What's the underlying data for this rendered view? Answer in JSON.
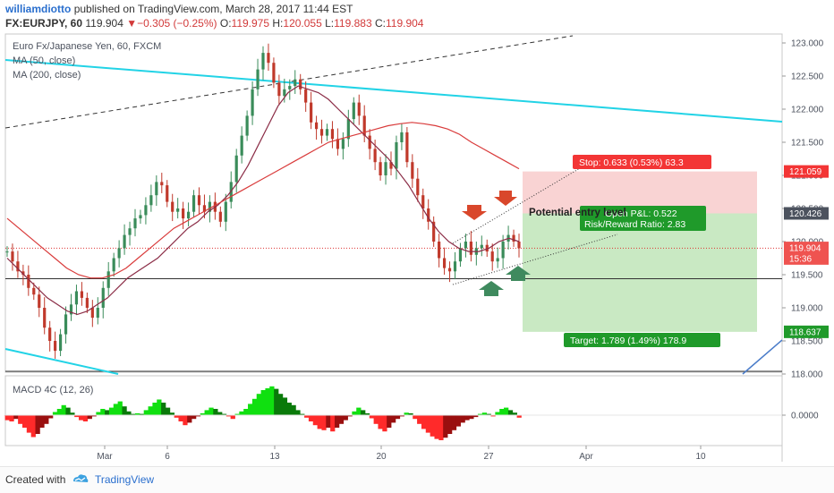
{
  "header": {
    "author": "williamdiotto",
    "published_text": "published on TradingView.com, March 28, 2017 11:44 EST",
    "symbol": "FX:EURJPY, 60",
    "price": "119.904",
    "change_arrow": "▼",
    "change": "−0.305 (−0.25%)",
    "open_label": "O:",
    "open": "119.975",
    "high_label": "H:",
    "high": "120.055",
    "low_label": "L:",
    "low": "119.883",
    "close_label": "C:",
    "close": "119.904"
  },
  "legend": {
    "instrument": "Euro Fx/Japanese Yen, 60, FXCM",
    "ma50": "MA (50, close)",
    "ma200": "MA (200, close)",
    "macd": "MACD 4C (12, 26)"
  },
  "overlays": {
    "potential_entry": "Potential entry level",
    "stop": "Stop: 0.633 (0.53%) 63.3",
    "open_pl": "Open P&L: 0.522",
    "risk_reward": "Risk/Reward Ratio: 2.83",
    "target": "Target: 1.789 (1.49%) 178.9"
  },
  "footer": {
    "created_with": "Created with",
    "brand": "TradingView",
    "logo_icon": "tradingview-logo-icon"
  },
  "colors": {
    "up": "#26a69a",
    "down": "#ef5350",
    "candle_up": "#3a8c5a",
    "candle_down": "#c0392b",
    "ma50": "#8b2c46",
    "ma200": "#d93b3b",
    "trend_cyan": "#22d3e6",
    "stop_zone": "#f9d3d3",
    "target_zone": "#c9e9c3",
    "stop_label": "#f33535",
    "target_label": "#1f9a2a",
    "macd_bright_green": "#10e010",
    "macd_dark_green": "#0a7a0a",
    "macd_bright_red": "#ff2a2a",
    "macd_dark_red": "#9a0f0f",
    "arrow_red": "#d9472b",
    "arrow_green": "#3f8a5e"
  },
  "chart_data": [
    {
      "type": "candlestick",
      "title": "Euro Fx/Japanese Yen, 60, FXCM",
      "ylim": [
        118.0,
        123.1
      ],
      "y_ticks": [
        "123.000",
        "122.500",
        "122.000",
        "121.500",
        "121.000",
        "120.500",
        "120.000",
        "119.500",
        "119.000",
        "118.500",
        "118.000"
      ],
      "x_ticks": [
        "Mar",
        "6",
        "13",
        "20",
        "27",
        "Apr",
        "10"
      ],
      "price_labels": [
        {
          "text": "121.059",
          "value": 121.059,
          "kind": "stop"
        },
        {
          "text": "120.426",
          "value": 120.426,
          "kind": "entry"
        },
        {
          "text": "119.904",
          "value": 119.904,
          "kind": "last"
        },
        {
          "text": "15:36",
          "value": 119.745,
          "kind": "countdown"
        },
        {
          "text": "118.637",
          "value": 118.637,
          "kind": "target"
        }
      ],
      "close_series": [
        119.85,
        119.7,
        119.55,
        119.5,
        119.3,
        119.2,
        119.0,
        118.7,
        118.5,
        118.35,
        118.6,
        118.9,
        119.05,
        119.25,
        119.15,
        119.0,
        118.85,
        119.0,
        119.3,
        119.55,
        119.75,
        119.9,
        120.1,
        120.2,
        120.35,
        120.4,
        120.55,
        120.7,
        120.9,
        120.85,
        120.6,
        120.45,
        120.5,
        120.35,
        120.45,
        120.7,
        120.55,
        120.45,
        120.6,
        120.45,
        120.3,
        120.6,
        120.9,
        121.3,
        121.6,
        121.9,
        122.3,
        122.6,
        122.85,
        122.7,
        122.4,
        122.2,
        122.3,
        122.35,
        122.45,
        122.3,
        122.1,
        121.8,
        121.7,
        121.6,
        121.7,
        121.55,
        121.4,
        121.55,
        121.85,
        122.1,
        121.9,
        121.6,
        121.4,
        121.2,
        121.0,
        121.2,
        121.1,
        121.5,
        121.65,
        121.2,
        120.95,
        120.7,
        120.5,
        120.3,
        120.0,
        119.75,
        119.6,
        119.55,
        119.7,
        119.9,
        120.0,
        119.8,
        119.9,
        119.95,
        119.85,
        119.7,
        119.75,
        120.0,
        120.1,
        120.0,
        119.9
      ],
      "series": [
        {
          "name": "MA (50, close)",
          "values": [
            119.75,
            119.6,
            119.45,
            119.3,
            119.15,
            119.05,
            118.95,
            118.9,
            118.95,
            119.05,
            119.15,
            119.3,
            119.45,
            119.55,
            119.65,
            119.75,
            119.9,
            120.05,
            120.2,
            120.3,
            120.45,
            120.55,
            120.7,
            120.9,
            121.15,
            121.45,
            121.75,
            122.05,
            122.25,
            122.35,
            122.3,
            122.25,
            122.15,
            122.0,
            121.85,
            121.7,
            121.55,
            121.4,
            121.25,
            121.05,
            120.85,
            120.6,
            120.35,
            120.15,
            120.0,
            119.9,
            119.85,
            119.85,
            119.9,
            120.0,
            120.05,
            120.0
          ]
        },
        {
          "name": "MA (200, close)",
          "values": [
            120.35,
            120.2,
            120.05,
            119.9,
            119.75,
            119.6,
            119.5,
            119.45,
            119.45,
            119.5,
            119.6,
            119.75,
            119.9,
            120.05,
            120.2,
            120.3,
            120.4,
            120.5,
            120.6,
            120.7,
            120.8,
            120.9,
            121.0,
            121.1,
            121.2,
            121.3,
            121.4,
            121.5,
            121.55,
            121.6,
            121.65,
            121.7,
            121.75,
            121.78,
            121.8,
            121.78,
            121.75,
            121.7,
            121.62,
            121.5,
            121.4,
            121.3,
            121.2,
            121.1
          ]
        }
      ],
      "position": {
        "entry": 120.426,
        "stop": 121.059,
        "target": 118.637
      }
    },
    {
      "type": "bar",
      "title": "MACD 4C (12, 26)",
      "y_ticks": [
        "0.0000"
      ],
      "values": [
        -0.08,
        -0.1,
        -0.06,
        -0.14,
        -0.2,
        -0.28,
        -0.35,
        -0.3,
        -0.2,
        -0.14,
        -0.05,
        0.05,
        0.1,
        0.16,
        0.12,
        0.04,
        -0.03,
        -0.08,
        -0.1,
        -0.06,
        -0.02,
        0.05,
        0.1,
        0.08,
        0.12,
        0.18,
        0.22,
        0.14,
        0.06,
        0.02,
        0.03,
        0.02,
        0.08,
        0.14,
        0.2,
        0.25,
        0.2,
        0.12,
        0.04,
        -0.04,
        -0.1,
        -0.16,
        -0.12,
        -0.06,
        -0.02,
        0.03,
        0.08,
        0.12,
        0.1,
        0.05,
        0.02,
        -0.02,
        -0.06,
        0.02,
        0.06,
        0.1,
        0.18,
        0.26,
        0.34,
        0.4,
        0.43,
        0.46,
        0.42,
        0.34,
        0.28,
        0.2,
        0.16,
        0.08,
        0.02,
        -0.04,
        -0.1,
        -0.16,
        -0.22,
        -0.24,
        -0.2,
        -0.26,
        -0.2,
        -0.14,
        -0.08,
        -0.02,
        0.06,
        0.12,
        0.08,
        0.03,
        -0.05,
        -0.14,
        -0.22,
        -0.26,
        -0.2,
        -0.12,
        -0.06,
        -0.02,
        0.04,
        0.03,
        -0.06,
        -0.14,
        -0.22,
        -0.28,
        -0.34,
        -0.38,
        -0.4,
        -0.36,
        -0.3,
        -0.24,
        -0.18,
        -0.12,
        -0.08,
        -0.06,
        -0.03,
        0.02,
        0.04,
        0.02,
        -0.02,
        0.05,
        0.1,
        0.12,
        0.08,
        0.04,
        -0.04
      ]
    }
  ]
}
